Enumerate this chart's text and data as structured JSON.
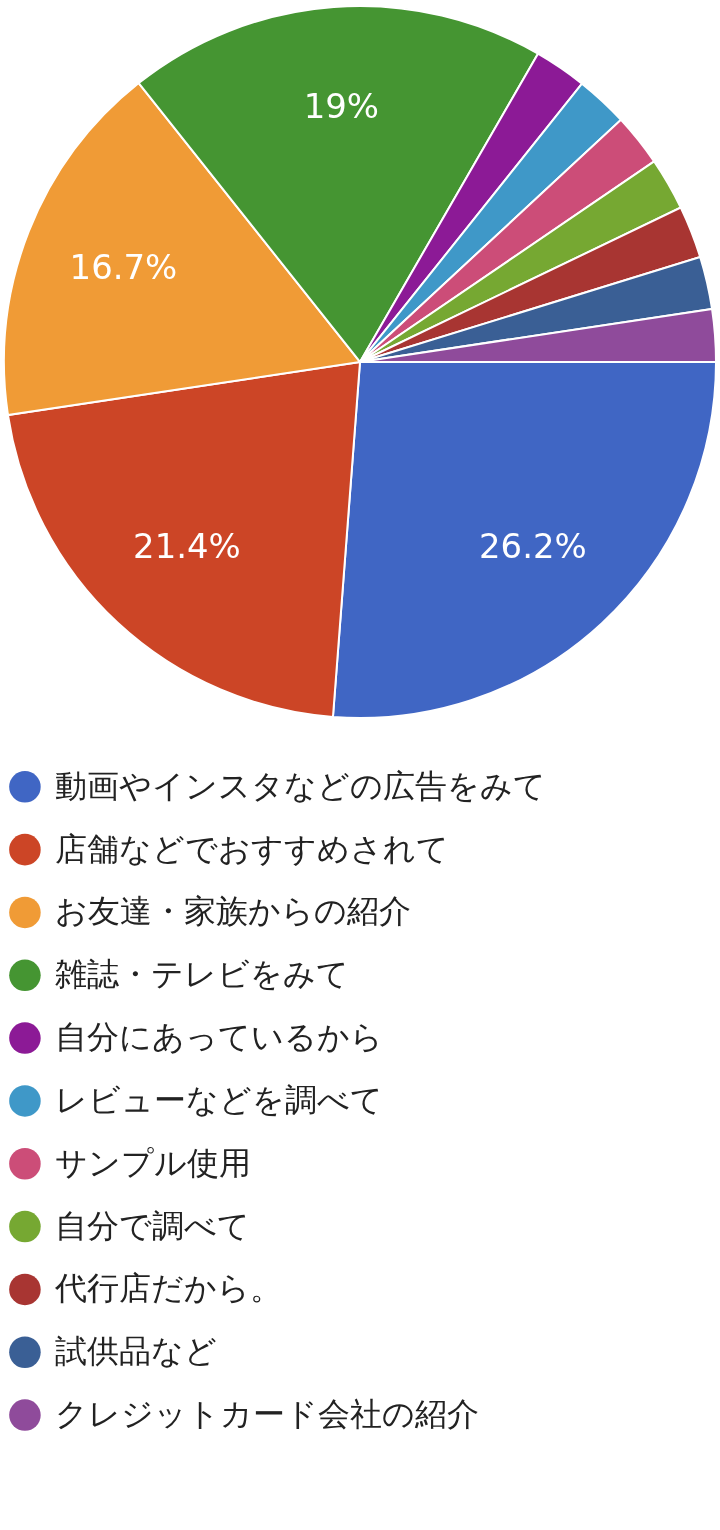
{
  "chart_data": {
    "type": "pie",
    "categories": [
      "動画やインスタなどの広告をみて",
      "店舗などでおすすめされて",
      "お友達・家族からの紹介",
      "雑誌・テレビをみて",
      "自分にあっているから",
      "レビューなどを調べて",
      "サンプル使用",
      "自分で調べて",
      "代行店だから。",
      "試供品など",
      "クレジットカード会社の紹介"
    ],
    "values": [
      26.2,
      21.4,
      16.7,
      19,
      2.38,
      2.38,
      2.38,
      2.38,
      2.38,
      2.38,
      2.38
    ],
    "value_labels": [
      "26.2%",
      "21.4%",
      "16.7%",
      "19%",
      null,
      null,
      null,
      null,
      null,
      null,
      null
    ],
    "colors": [
      "#4066c4",
      "#cc4526",
      "#f09b36",
      "#459532",
      "#8c1a96",
      "#3f98c8",
      "#cc4d78",
      "#76a832",
      "#a83532",
      "#3a5f95",
      "#8f4b9b"
    ],
    "legend": "bottom"
  }
}
